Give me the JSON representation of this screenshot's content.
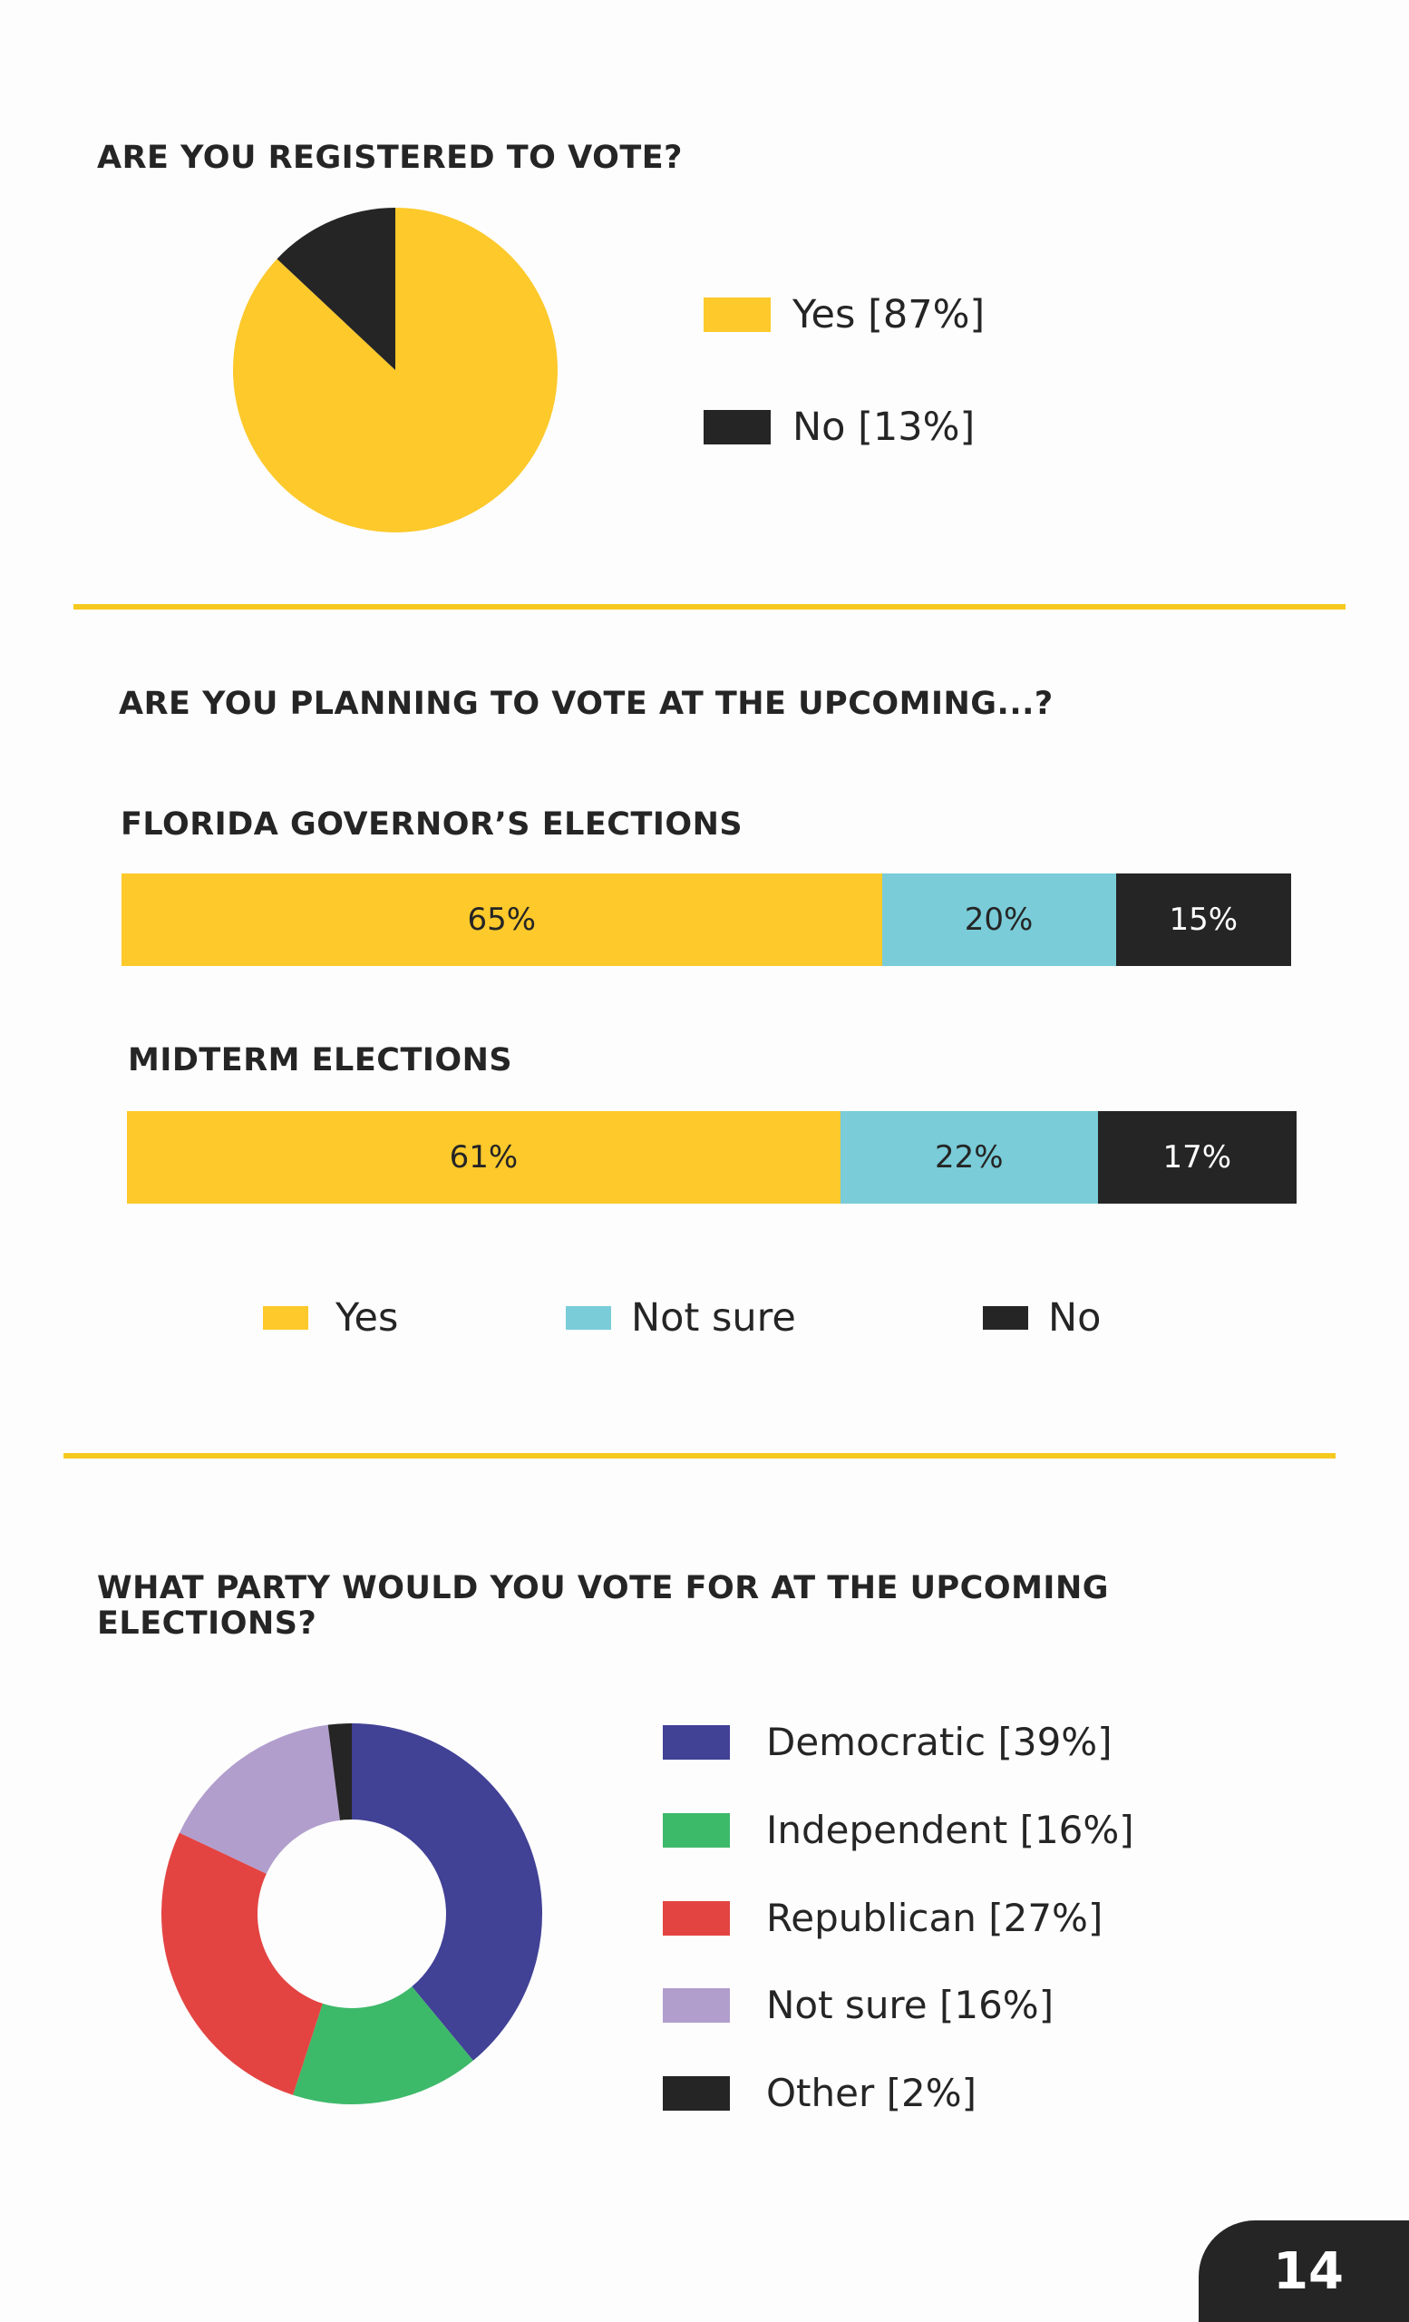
{
  "colors": {
    "yellow": "#fdc92b",
    "teal": "#79ccd8",
    "dark": "#252525",
    "blue": "#414196",
    "green": "#3db96a",
    "red": "#e34442",
    "purple": "#b19ecd",
    "divider": "#f6c91f"
  },
  "section1": {
    "title": "ARE YOU REGISTERED TO VOTE?",
    "legend": [
      "Yes [87%]",
      "No [13%]"
    ]
  },
  "section2": {
    "title": "ARE YOU PLANNING TO VOTE AT THE UPCOMING...?",
    "bars": [
      {
        "label": "FLORIDA GOVERNOR’S ELECTIONS",
        "yes": "65%",
        "not_sure": "20%",
        "no": "15%"
      },
      {
        "label": "MIDTERM ELECTIONS",
        "yes": "61%",
        "not_sure": "22%",
        "no": "17%"
      }
    ],
    "legend": [
      "Yes",
      "Not sure",
      "No"
    ]
  },
  "section3": {
    "title": "WHAT PARTY WOULD YOU VOTE FOR AT THE UPCOMING ELECTIONS?",
    "legend": [
      "Democratic [39%]",
      "Independent [16%]",
      "Republican [27%]",
      "Not sure [16%]",
      "Other [2%]"
    ]
  },
  "page_number": "14",
  "chart_data": [
    {
      "type": "pie",
      "title": "ARE YOU REGISTERED TO VOTE?",
      "categories": [
        "Yes",
        "No"
      ],
      "values": [
        87,
        13
      ],
      "colors": [
        "#fdc92b",
        "#252525"
      ],
      "legend": "right"
    },
    {
      "type": "bar",
      "orientation": "horizontal-stacked",
      "title": "ARE YOU PLANNING TO VOTE AT THE UPCOMING...?",
      "categories": [
        "FLORIDA GOVERNOR’S ELECTIONS",
        "MIDTERM ELECTIONS"
      ],
      "series": [
        {
          "name": "Yes",
          "values": [
            65,
            61
          ],
          "color": "#fdc92b"
        },
        {
          "name": "Not sure",
          "values": [
            20,
            22
          ],
          "color": "#79ccd8"
        },
        {
          "name": "No",
          "values": [
            15,
            17
          ],
          "color": "#252525"
        }
      ],
      "legend": "bottom"
    },
    {
      "type": "pie",
      "style": "donut",
      "title": "WHAT PARTY WOULD YOU VOTE FOR AT THE UPCOMING ELECTIONS?",
      "categories": [
        "Democratic",
        "Independent",
        "Republican",
        "Not sure",
        "Other"
      ],
      "values": [
        39,
        16,
        27,
        16,
        2
      ],
      "colors": [
        "#414196",
        "#3db96a",
        "#e34442",
        "#b19ecd",
        "#252525"
      ],
      "legend": "right"
    }
  ]
}
